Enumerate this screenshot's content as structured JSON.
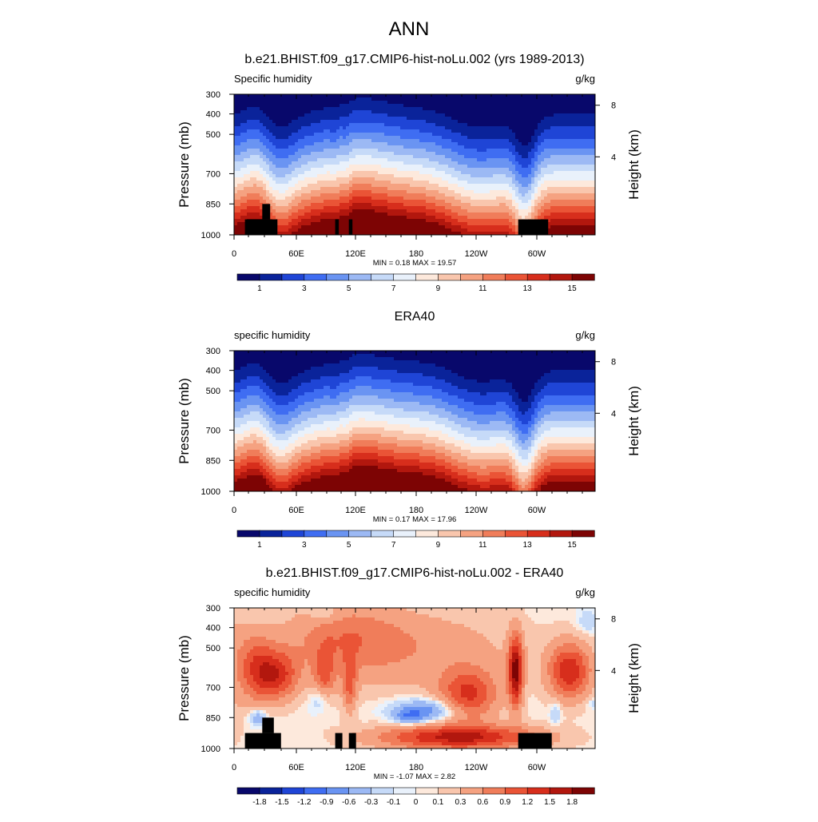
{
  "page_title": "ANN",
  "lat_axis_tick_labels": [
    "0",
    "60E",
    "120E",
    "180",
    "120W",
    "60W"
  ],
  "pressure_tick_labels": [
    "300",
    "400",
    "500",
    "700",
    "850",
    "1000"
  ],
  "height_tick_labels": [
    "8",
    "4"
  ],
  "pressure_axis_label": "Pressure (mb)",
  "height_axis_label": "Height (km)",
  "chart_data": [
    {
      "type": "heatmap",
      "title": "b.e21.BHIST.f09_g17.CMIP6-hist-noLu.002 (yrs 1989-2013)",
      "left_label": "Specific humidity",
      "right_label": "g/kg",
      "x": [
        "0",
        "60E",
        "120E",
        "180",
        "120W",
        "60W"
      ],
      "y_pressure_mb": [
        300,
        400,
        500,
        700,
        850,
        1000
      ],
      "y_height_km": [
        8,
        4
      ],
      "min_max_label": "MIN =   0.18  MAX =  19.57",
      "min": 0.18,
      "max": 19.57,
      "colorbar_levels": [
        0,
        1,
        2,
        3,
        4,
        5,
        6,
        7,
        8,
        9,
        10,
        11,
        12,
        13,
        14,
        15,
        16
      ],
      "colorbar_labels": [
        "1",
        "3",
        "5",
        "7",
        "9",
        "11",
        "13",
        "15"
      ]
    },
    {
      "type": "heatmap",
      "title": "ERA40",
      "left_label": "specific humidity",
      "right_label": "g/kg",
      "x": [
        "0",
        "60E",
        "120E",
        "180",
        "120W",
        "60W"
      ],
      "y_pressure_mb": [
        300,
        400,
        500,
        700,
        850,
        1000
      ],
      "y_height_km": [
        8,
        4
      ],
      "min_max_label": "MIN =   0.17  MAX =  17.96",
      "min": 0.17,
      "max": 17.96,
      "colorbar_levels": [
        0,
        1,
        2,
        3,
        4,
        5,
        6,
        7,
        8,
        9,
        10,
        11,
        12,
        13,
        14,
        15,
        16
      ],
      "colorbar_labels": [
        "1",
        "3",
        "5",
        "7",
        "9",
        "11",
        "13",
        "15"
      ]
    },
    {
      "type": "heatmap",
      "title": "b.e21.BHIST.f09_g17.CMIP6-hist-noLu.002 - ERA40",
      "left_label": "specific humidity",
      "right_label": "g/kg",
      "x": [
        "0",
        "60E",
        "120E",
        "180",
        "120W",
        "60W"
      ],
      "y_pressure_mb": [
        300,
        400,
        500,
        700,
        850,
        1000
      ],
      "y_height_km": [
        8,
        4
      ],
      "min_max_label": "MIN =  -1.07  MAX =   2.82",
      "min": -1.07,
      "max": 2.82,
      "colorbar_labels": [
        "-1.8",
        "-1.5",
        "-1.2",
        "-0.9",
        "-0.6",
        "-0.3",
        "-0.1",
        "0",
        "0.1",
        "0.3",
        "0.6",
        "0.9",
        "1.2",
        "1.5",
        "1.8"
      ]
    }
  ],
  "colors": {
    "palette": [
      "#08086b",
      "#0a239a",
      "#1f45d6",
      "#3f6df2",
      "#6a94f2",
      "#9cb9f4",
      "#c6daf8",
      "#e9f1fb",
      "#fde9dc",
      "#f9c6ad",
      "#f5a281",
      "#f07d5a",
      "#ea5436",
      "#d72e1c",
      "#b2170e",
      "#7d0404"
    ],
    "mask": "#000000"
  }
}
